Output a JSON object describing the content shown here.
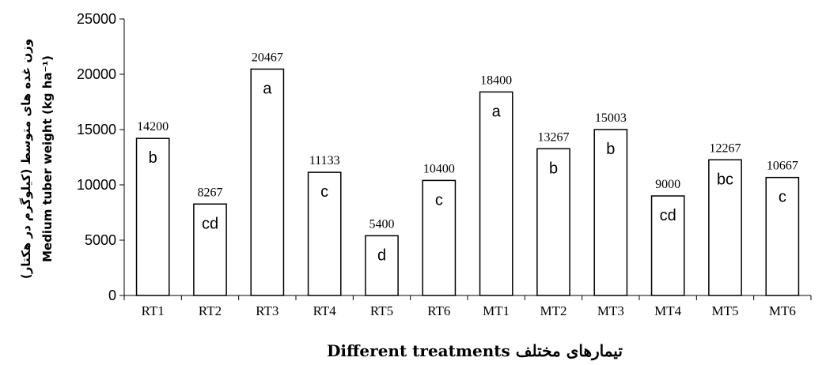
{
  "chart_data": {
    "type": "bar",
    "title": "",
    "xlabel": "Different treatments  تیمارهای مختلف",
    "ylabel_en": "Medium tuber weight (kg ha⁻¹)",
    "ylabel_fa": "وزن غده های متوسط (کیلوگرم در هکتار)",
    "ylim": [
      0,
      25000
    ],
    "yticks": [
      0,
      5000,
      10000,
      15000,
      20000,
      25000
    ],
    "grid": false,
    "legend": "none",
    "bar_fill": "#ffffff",
    "bar_stroke": "#000000",
    "categories": [
      "RT1",
      "RT2",
      "RT3",
      "RT4",
      "RT5",
      "RT6",
      "MT1",
      "MT2",
      "MT3",
      "MT4",
      "MT5",
      "MT6"
    ],
    "values": [
      14200,
      8267,
      20467,
      11133,
      5400,
      10400,
      18400,
      13267,
      15003,
      9000,
      12267,
      10667
    ],
    "value_labels": [
      "14200",
      "8267",
      "20467",
      "11133",
      "5400",
      "10400",
      "18400",
      "13267",
      "15003",
      "9000",
      "12267",
      "10667"
    ],
    "significance_letters": [
      "b",
      "cd",
      "a",
      "c",
      "d",
      "c",
      "a",
      "b",
      "b",
      "cd",
      "bc",
      "c"
    ]
  }
}
